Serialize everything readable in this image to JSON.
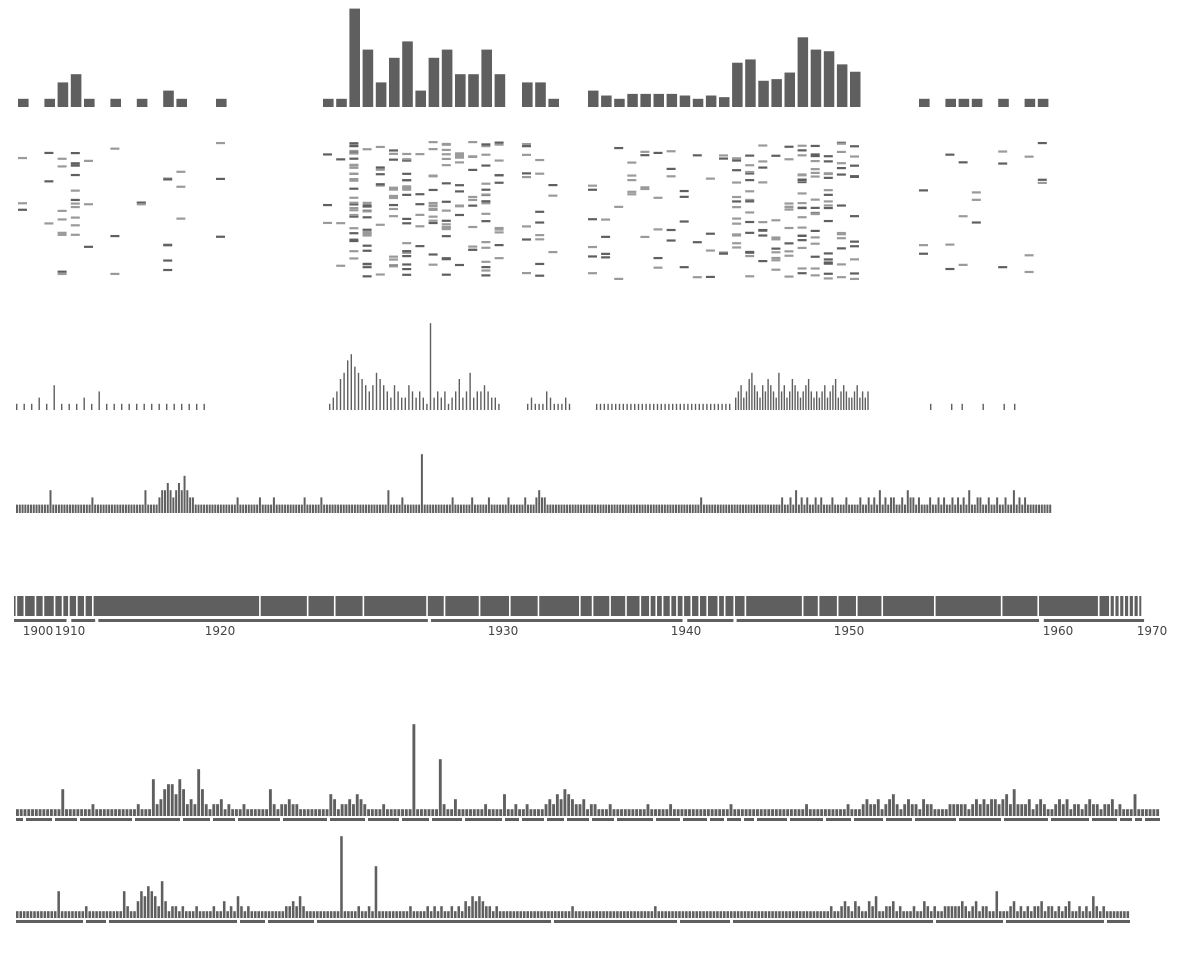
{
  "colors": {
    "bar": "#5f5f5f",
    "light_mark": "#9a9a9a",
    "background": "#ffffff"
  },
  "chart_data": [
    {
      "type": "bar",
      "panel": "yearly-totals",
      "groups": [
        [
          1,
          0,
          1,
          3,
          4,
          1,
          0,
          1,
          0,
          1,
          0,
          2,
          1,
          0,
          0,
          1
        ],
        [
          1,
          1,
          12,
          7,
          3,
          6,
          8,
          2,
          6,
          7,
          4,
          4,
          7,
          4
        ],
        [
          3,
          3,
          1
        ],
        [
          2,
          1.4,
          1,
          1.6,
          1.6,
          1.6,
          1.6,
          1.4,
          1,
          1.4,
          1.2,
          5.4,
          5.8,
          3.2,
          3.4,
          4.2,
          8.5,
          7,
          6.8,
          5.2,
          4.3
        ],
        [
          1,
          0,
          1,
          1,
          1,
          0,
          1,
          0,
          1,
          1
        ]
      ]
    },
    {
      "type": "heatmap",
      "panel": "dash-matrix",
      "marks": "dense dash columns under each yearly bar"
    },
    {
      "type": "bar",
      "panel": "spike-series",
      "groups": [
        [
          1,
          1,
          1,
          2,
          1,
          4,
          1,
          1,
          1,
          2,
          1,
          3,
          1,
          1,
          1,
          1,
          1,
          1,
          1,
          1,
          1,
          1,
          1,
          1,
          1,
          1
        ],
        [
          1,
          2,
          3,
          5,
          6,
          8,
          9,
          7,
          6,
          5,
          4,
          3,
          4,
          6,
          5,
          4,
          3,
          2,
          4,
          3,
          2,
          2,
          4,
          3,
          2,
          3,
          2,
          1,
          14,
          2,
          3,
          2,
          3,
          1,
          2,
          3,
          5,
          2,
          3,
          6,
          2,
          3,
          3,
          4,
          3,
          2,
          2,
          1
        ],
        [
          1,
          2,
          1,
          1,
          1,
          3,
          2,
          1,
          1,
          1,
          2,
          1
        ],
        [
          1,
          1,
          1,
          1,
          1,
          1,
          1,
          1,
          1,
          1,
          1,
          1,
          1,
          1,
          1,
          1,
          1,
          1,
          1,
          1,
          1,
          1,
          1,
          1,
          1,
          1,
          1,
          1,
          1,
          1,
          1,
          1,
          1,
          1,
          1,
          1
        ],
        [
          2,
          3,
          4,
          2,
          3,
          5,
          6,
          4,
          3,
          2,
          4,
          3,
          5,
          4,
          3,
          2,
          6,
          3,
          4,
          2,
          3,
          5,
          4,
          3,
          2,
          3,
          4,
          5,
          3,
          2,
          3,
          2,
          3,
          4,
          2,
          3,
          4,
          5,
          2,
          3,
          4,
          3,
          2,
          2,
          3,
          4,
          2,
          3,
          2,
          3
        ],
        [
          1,
          0,
          1,
          1,
          0,
          1,
          0,
          1,
          1
        ]
      ]
    },
    {
      "type": "bar",
      "panel": "continuous-series",
      "values": [
        1,
        1,
        1,
        1,
        1,
        1,
        1,
        1,
        1,
        1,
        1,
        1,
        3,
        1,
        1,
        1,
        1,
        1,
        1,
        1,
        1,
        1,
        1,
        1,
        1,
        1,
        1,
        2,
        1,
        1,
        1,
        1,
        1,
        1,
        1,
        1,
        1,
        1,
        1,
        1,
        1,
        1,
        1,
        1,
        1,
        1,
        3,
        1,
        1,
        1,
        1,
        2,
        3,
        3,
        4,
        3,
        2,
        3,
        4,
        3,
        5,
        3,
        2,
        2,
        1,
        1,
        1,
        1,
        1,
        1,
        1,
        1,
        1,
        1,
        1,
        1,
        1,
        1,
        1,
        2,
        1,
        1,
        1,
        1,
        1,
        1,
        1,
        2,
        1,
        1,
        1,
        1,
        2,
        1,
        1,
        1,
        1,
        1,
        1,
        1,
        1,
        1,
        1,
        2,
        1,
        1,
        1,
        1,
        1,
        2,
        1,
        1,
        1,
        1,
        1,
        1,
        1,
        1,
        1,
        1,
        1,
        1,
        1,
        1,
        1,
        1,
        1,
        1,
        1,
        1,
        1,
        1,
        1,
        3,
        1,
        1,
        1,
        1,
        2,
        1,
        1,
        1,
        1,
        1,
        1,
        8,
        1,
        1,
        1,
        1,
        1,
        1,
        1,
        1,
        1,
        1,
        2,
        1,
        1,
        1,
        1,
        1,
        1,
        2,
        1,
        1,
        1,
        1,
        1,
        2,
        1,
        1,
        1,
        1,
        1,
        1,
        2,
        1,
        1,
        1,
        1,
        1,
        2,
        1,
        1,
        1,
        2,
        3,
        2,
        2,
        1,
        1,
        1,
        1,
        1,
        1,
        1,
        1,
        1,
        1,
        1,
        1,
        1,
        1,
        1,
        1,
        1,
        1,
        1,
        1,
        1,
        1,
        1,
        1,
        1,
        1,
        1,
        1,
        1,
        1,
        1,
        1,
        1,
        1,
        1,
        1,
        1,
        1,
        1,
        1,
        1,
        1,
        1,
        1,
        1,
        1,
        1,
        1,
        1,
        1,
        1,
        1,
        1,
        1,
        1,
        2,
        1,
        1,
        1,
        1,
        1,
        1,
        1,
        1,
        1,
        1,
        1,
        1,
        1,
        1,
        1,
        1,
        1,
        1,
        1,
        1,
        1,
        1,
        1,
        1,
        1,
        1,
        1,
        1,
        2,
        1,
        1,
        2,
        1,
        3,
        1,
        2,
        1,
        2,
        1,
        1,
        2,
        1,
        2,
        1,
        1,
        1,
        2,
        1,
        1,
        1,
        1,
        2,
        1,
        1,
        1,
        1,
        2,
        1,
        1,
        2,
        1,
        2,
        1,
        3,
        1,
        2,
        1,
        2,
        2,
        1,
        1,
        2,
        1,
        3,
        2,
        2,
        1,
        2,
        1,
        1,
        1,
        2,
        1,
        1,
        2,
        1,
        2,
        1,
        1,
        2,
        1,
        2,
        1,
        2,
        1,
        3,
        1,
        1,
        2,
        2,
        1,
        1,
        2,
        1,
        1,
        2,
        1,
        1,
        2,
        1,
        1,
        3,
        1,
        2,
        1,
        2,
        1,
        1,
        1,
        1,
        1,
        1,
        1,
        1,
        1
      ]
    },
    {
      "type": "table",
      "panel": "timeline",
      "tick_labels": [
        "1900",
        "1910",
        "1920",
        "1930",
        "1940",
        "1950",
        "1960",
        "1970"
      ],
      "ticks": [
        1900,
        1910,
        1920,
        1930,
        1940,
        1950,
        1960,
        1970
      ],
      "xlim": [
        1899,
        1971
      ]
    },
    {
      "type": "bar",
      "panel": "lower-series-1",
      "values": [
        1,
        1,
        1,
        1,
        1,
        1,
        1,
        1,
        1,
        1,
        1,
        1,
        5,
        1,
        1,
        1,
        1,
        1,
        1,
        1,
        2,
        1,
        1,
        1,
        1,
        1,
        1,
        1,
        1,
        1,
        1,
        1,
        2,
        1,
        1,
        1,
        7,
        2,
        3,
        5,
        6,
        6,
        4,
        7,
        5,
        2,
        3,
        2,
        9,
        5,
        2,
        1,
        2,
        2,
        3,
        1,
        2,
        1,
        1,
        1,
        2,
        1,
        1,
        1,
        1,
        1,
        1,
        5,
        2,
        1,
        2,
        2,
        3,
        2,
        2,
        1,
        1,
        1,
        1,
        1,
        1,
        1,
        1,
        4,
        3,
        1,
        2,
        2,
        3,
        2,
        4,
        3,
        2,
        1,
        1,
        1,
        1,
        2,
        1,
        1,
        1,
        1,
        1,
        1,
        1,
        18,
        1,
        1,
        1,
        1,
        1,
        1,
        11,
        2,
        1,
        1,
        3,
        1,
        1,
        1,
        1,
        1,
        1,
        1,
        2,
        1,
        1,
        1,
        1,
        4,
        1,
        1,
        2,
        1,
        1,
        2,
        1,
        1,
        1,
        1,
        2,
        3,
        2,
        4,
        3,
        5,
        4,
        3,
        2,
        2,
        3,
        1,
        2,
        2,
        1,
        1,
        1,
        2,
        1,
        1,
        1,
        1,
        1,
        1,
        1,
        1,
        1,
        2,
        1,
        1,
        1,
        1,
        1,
        2,
        1,
        1,
        1,
        1,
        1,
        1,
        1,
        1,
        1,
        1,
        1,
        1,
        1,
        1,
        1,
        2,
        1,
        1,
        1,
        1,
        1,
        1,
        1,
        1,
        1,
        1,
        1,
        1,
        1,
        1,
        1,
        1,
        1,
        1,
        1,
        2,
        1,
        1,
        1,
        1,
        1,
        1,
        1,
        1,
        1,
        1,
        2,
        1,
        1,
        1,
        2,
        3,
        2,
        2,
        3,
        1,
        2,
        3,
        4,
        2,
        1,
        2,
        3,
        2,
        2,
        1,
        3,
        2,
        2,
        1,
        1,
        1,
        1,
        2,
        2,
        2,
        2,
        2,
        1,
        2,
        3,
        2,
        3,
        2,
        3,
        3,
        2,
        3,
        4,
        2,
        5,
        2,
        2,
        2,
        3,
        1,
        2,
        3,
        2,
        1,
        1,
        2,
        3,
        2,
        3,
        1,
        2,
        2,
        1,
        2,
        3,
        2,
        2,
        1,
        2,
        2,
        3,
        1,
        2,
        1,
        1,
        1,
        4,
        1,
        1,
        1,
        1,
        1,
        1
      ]
    },
    {
      "type": "bar",
      "panel": "lower-series-2",
      "values": [
        1,
        1,
        1,
        1,
        1,
        1,
        1,
        1,
        1,
        1,
        1,
        1,
        5,
        1,
        1,
        1,
        1,
        1,
        1,
        1,
        2,
        1,
        1,
        1,
        1,
        1,
        1,
        1,
        1,
        1,
        1,
        5,
        2,
        1,
        1,
        3,
        5,
        4,
        6,
        5,
        4,
        2,
        7,
        3,
        1,
        2,
        2,
        1,
        2,
        1,
        1,
        1,
        2,
        1,
        1,
        1,
        1,
        2,
        1,
        1,
        3,
        1,
        2,
        1,
        4,
        2,
        1,
        2,
        1,
        1,
        1,
        1,
        1,
        1,
        1,
        1,
        1,
        1,
        2,
        2,
        3,
        2,
        4,
        2,
        1,
        1,
        1,
        1,
        1,
        1,
        1,
        1,
        1,
        1,
        16,
        1,
        1,
        1,
        1,
        2,
        1,
        1,
        2,
        1,
        10,
        1,
        1,
        1,
        1,
        1,
        1,
        1,
        1,
        1,
        2,
        1,
        1,
        1,
        1,
        2,
        1,
        2,
        1,
        2,
        1,
        1,
        2,
        1,
        2,
        1,
        3,
        2,
        4,
        3,
        4,
        3,
        2,
        2,
        1,
        2,
        1,
        1,
        1,
        1,
        1,
        1,
        1,
        1,
        1,
        1,
        1,
        1,
        1,
        1,
        1,
        1,
        1,
        1,
        1,
        1,
        1,
        2,
        1,
        1,
        1,
        1,
        1,
        1,
        1,
        1,
        1,
        1,
        1,
        1,
        1,
        1,
        1,
        1,
        1,
        1,
        1,
        1,
        1,
        1,
        1,
        2,
        1,
        1,
        1,
        1,
        1,
        1,
        1,
        1,
        1,
        1,
        1,
        1,
        1,
        1,
        1,
        1,
        1,
        1,
        1,
        1,
        1,
        1,
        1,
        1,
        1,
        1,
        1,
        1,
        1,
        1,
        1,
        1,
        1,
        1,
        1,
        1,
        1,
        1,
        1,
        1,
        1,
        1,
        1,
        1,
        1,
        1,
        1,
        1,
        1,
        1,
        2,
        1,
        1,
        2,
        3,
        2,
        1,
        3,
        2,
        1,
        1,
        3,
        2,
        4,
        1,
        1,
        2,
        2,
        3,
        1,
        2,
        1,
        1,
        1,
        2,
        1,
        1,
        3,
        2,
        1,
        2,
        1,
        1,
        2,
        2,
        2,
        2,
        2,
        3,
        2,
        1,
        2,
        3,
        1,
        2,
        2,
        1,
        1,
        5,
        1,
        1,
        1,
        2,
        3,
        1,
        2,
        1,
        2,
        1,
        2,
        2,
        3,
        1,
        2,
        2,
        1,
        2,
        1,
        2,
        3,
        1,
        1,
        2,
        1,
        2,
        1,
        4,
        2,
        1,
        2,
        1,
        1,
        1,
        1,
        1,
        1,
        1
      ]
    }
  ]
}
